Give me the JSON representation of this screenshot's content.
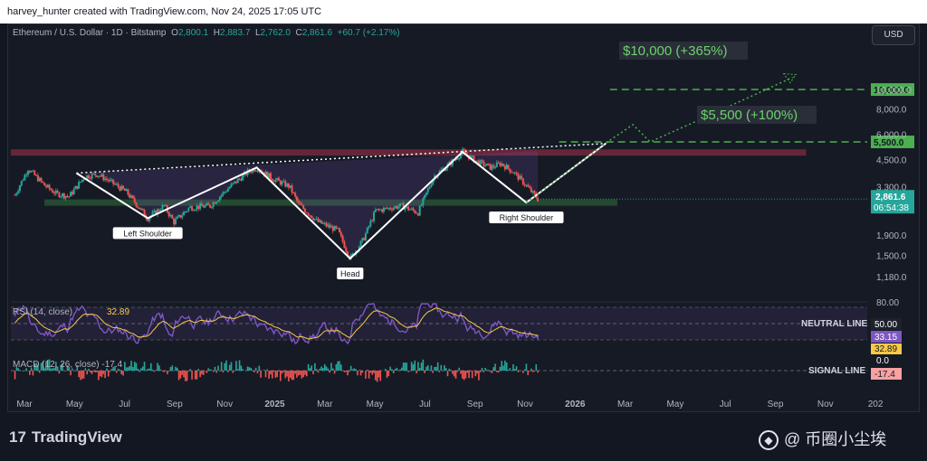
{
  "header": {
    "attribution": "harvey_hunter created with TradingView.com, Nov 24, 2025 17:05 UTC"
  },
  "legend": {
    "title": "Ethereum / U.S. Dollar · 1D · Bitstamp",
    "o_label": "O",
    "o": "2,800.1",
    "h_label": "H",
    "h": "2,883.7",
    "l_label": "L",
    "l": "2,762.0",
    "c_label": "C",
    "c": "2,861.6",
    "change": "+60.7 (+2.17%)"
  },
  "currency_button": "USD",
  "colors": {
    "bg": "#161a25",
    "up": "#26a69a",
    "down": "#ef5350",
    "pattern": "#ffffff",
    "target": "#4caf50",
    "rsi": "#7e57c2",
    "rsi_ma": "#f7c948",
    "resistance": "#a8324a",
    "support": "#2e6b3a"
  },
  "chart_data": [
    {
      "type": "line",
      "title": "Ethereum / U.S. Dollar · 1D · Bitstamp",
      "scale": "log",
      "price_ticks": [
        "10,000.0",
        "8,000.0",
        "6,000.0",
        "4,500.0",
        "3,300.0",
        "1,900.0",
        "1,500.0",
        "1,180.0"
      ],
      "tick_values": [
        10000,
        8000,
        6000,
        4500,
        3300,
        1900,
        1500,
        1180
      ],
      "time_labels": [
        "Mar",
        "May",
        "Jul",
        "Sep",
        "Nov",
        "2025",
        "Mar",
        "May",
        "Jul",
        "Sep",
        "Nov",
        "2026",
        "Mar",
        "May",
        "Jul",
        "Sep",
        "Nov",
        "202"
      ],
      "price_path": [
        [
          "2024-02-25",
          3000
        ],
        [
          "2024-03-12",
          4050
        ],
        [
          "2024-04-01",
          3350
        ],
        [
          "2024-04-15",
          3050
        ],
        [
          "2024-05-01",
          2950
        ],
        [
          "2024-05-20",
          3700
        ],
        [
          "2024-06-05",
          3800
        ],
        [
          "2024-06-25",
          3400
        ],
        [
          "2024-07-10",
          3100
        ],
        [
          "2024-08-05",
          2300
        ],
        [
          "2024-08-25",
          2650
        ],
        [
          "2024-09-06",
          2200
        ],
        [
          "2024-09-25",
          2600
        ],
        [
          "2024-10-20",
          2650
        ],
        [
          "2024-11-10",
          3200
        ],
        [
          "2024-12-05",
          3900
        ],
        [
          "2024-12-16",
          4100
        ],
        [
          "2025-01-05",
          3600
        ],
        [
          "2025-01-25",
          3300
        ],
        [
          "2025-02-05",
          2700
        ],
        [
          "2025-03-01",
          2200
        ],
        [
          "2025-03-25",
          2000
        ],
        [
          "2025-04-09",
          1450
        ],
        [
          "2025-04-25",
          1800
        ],
        [
          "2025-05-10",
          2500
        ],
        [
          "2025-06-10",
          2650
        ],
        [
          "2025-07-01",
          2450
        ],
        [
          "2025-07-20",
          3700
        ],
        [
          "2025-08-12",
          4400
        ],
        [
          "2025-08-24",
          4900
        ],
        [
          "2025-09-10",
          4400
        ],
        [
          "2025-09-28",
          4100
        ],
        [
          "2025-10-10",
          4300
        ],
        [
          "2025-10-25",
          3900
        ],
        [
          "2025-11-08",
          3400
        ],
        [
          "2025-11-24",
          2861.6
        ]
      ],
      "resistance_zone": [
        4700,
        5050
      ],
      "support_zone": [
        2650,
        2850
      ],
      "pattern_labels": [
        "Left Shoulder",
        "Head",
        "Right Shoulder"
      ],
      "targets": [
        {
          "label": "$10,000 (+365%)",
          "tag": "10,000.0",
          "value": 10000
        },
        {
          "label": "$5,500 (+100%)",
          "tag": "5,500.0",
          "value": 5500
        }
      ],
      "last_price_tag": "2,861.6",
      "countdown": "06:54:38"
    },
    {
      "type": "line",
      "title": "RSI (14, close)",
      "legend_value": "33.15",
      "legend_ma": "32.89",
      "level_label": "NEUTRAL LINE",
      "ticks": [
        "80.00",
        "50.00"
      ],
      "tags": [
        "33.15",
        "32.89"
      ],
      "last_rsi": 33.15,
      "last_ma": 32.89
    },
    {
      "type": "bar",
      "title": "MACD (12, 26, close)",
      "legend_value": "-17.4",
      "level_label": "SIGNAL LINE",
      "ticks": [
        "0.0"
      ],
      "tag": "-17.4"
    }
  ],
  "footer": {
    "brand": "TradingView",
    "brand_mark": "17",
    "watermark": "@ 币圈小尘埃",
    "watermark_icon": "◆"
  }
}
